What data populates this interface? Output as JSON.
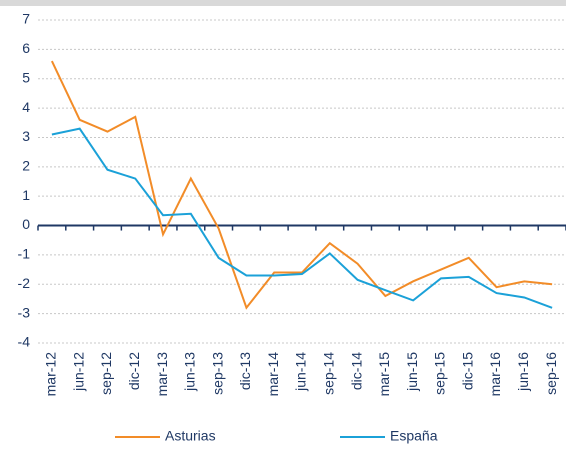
{
  "chart_data": {
    "type": "line",
    "categories": [
      "mar-12",
      "jun-12",
      "sep-12",
      "dic-12",
      "mar-13",
      "jun-13",
      "sep-13",
      "dic-13",
      "mar-14",
      "jun-14",
      "sep-14",
      "dic-14",
      "mar-15",
      "jun-15",
      "sep-15",
      "dic-15",
      "mar-16",
      "jun-16",
      "sep-16"
    ],
    "series": [
      {
        "name": "Asturias",
        "color": "#f28c28",
        "values": [
          5.6,
          3.6,
          3.2,
          3.7,
          -0.3,
          1.6,
          -0.1,
          -2.8,
          -1.6,
          -1.6,
          -0.6,
          -1.3,
          -2.4,
          -1.9,
          -1.5,
          -1.1,
          -2.1,
          -1.9,
          -2.0
        ]
      },
      {
        "name": "España",
        "color": "#1ba1d8",
        "values": [
          3.1,
          3.3,
          1.9,
          1.6,
          0.35,
          0.4,
          -1.1,
          -1.7,
          -1.7,
          -1.65,
          -0.95,
          -1.85,
          -2.2,
          -2.55,
          -1.8,
          -1.75,
          -2.3,
          -2.45,
          -2.8
        ]
      }
    ],
    "ylim": [
      -4,
      7
    ],
    "yticks": [
      -4,
      -3,
      -2,
      -1,
      0,
      1,
      2,
      3,
      4,
      5,
      6,
      7
    ],
    "grid": true
  }
}
